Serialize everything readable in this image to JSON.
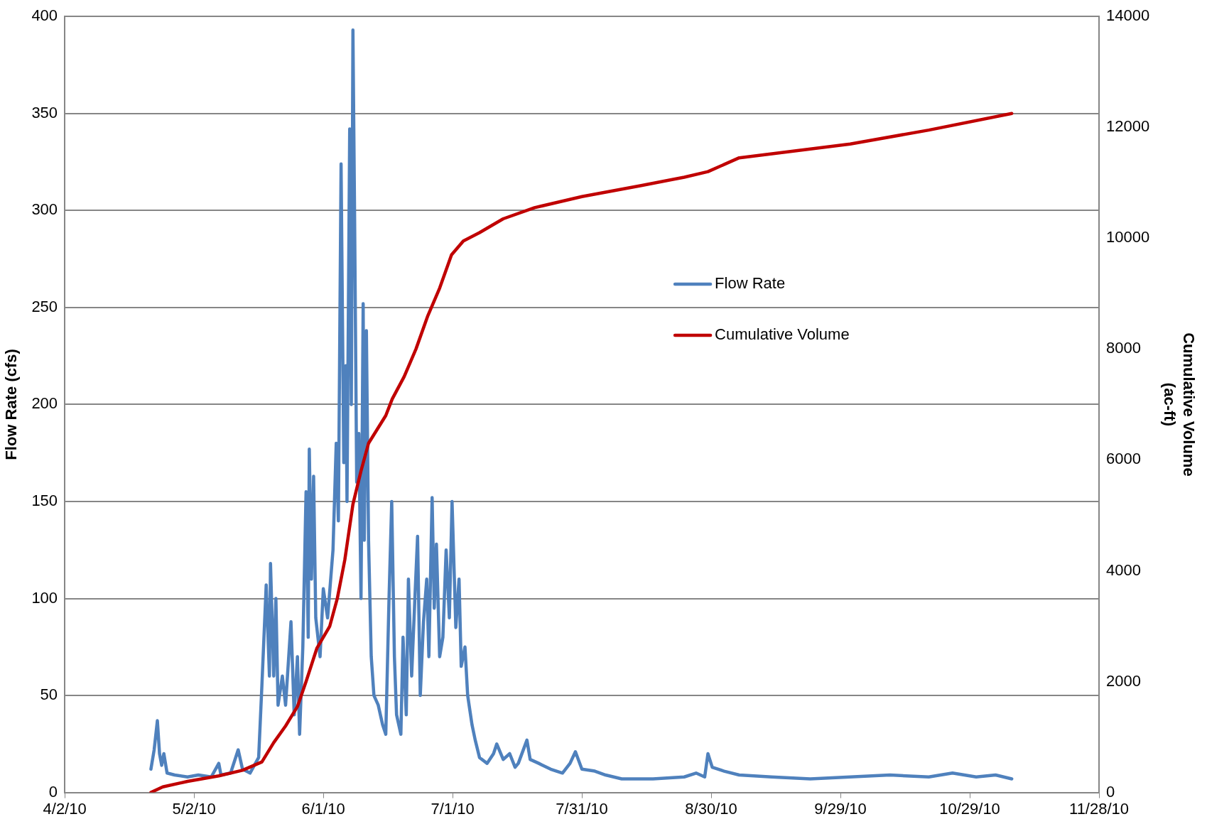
{
  "chart_data": {
    "type": "line",
    "xlabel": null,
    "ylabel": "Flow Rate (cfs)",
    "y2label": "Cumulative Volume (ac-ft)",
    "legend": "right",
    "grid": "y",
    "marker": "none",
    "line_style": "solid",
    "xlim": [
      "2010-04-02",
      "2010-11-28"
    ],
    "xticks": [
      {
        "value": "2010-04-02",
        "label": "4/2/10"
      },
      {
        "value": "2010-05-02",
        "label": "5/2/10"
      },
      {
        "value": "2010-06-01",
        "label": "6/1/10"
      },
      {
        "value": "2010-07-01",
        "label": "7/1/10"
      },
      {
        "value": "2010-07-31",
        "label": "7/31/10"
      },
      {
        "value": "2010-08-30",
        "label": "8/30/10"
      },
      {
        "value": "2010-09-29",
        "label": "9/29/10"
      },
      {
        "value": "2010-10-29",
        "label": "10/29/10"
      },
      {
        "value": "2010-11-28",
        "label": "11/28/10"
      }
    ],
    "ylim": [
      0,
      400
    ],
    "yticks": [
      0,
      50,
      100,
      150,
      200,
      250,
      300,
      350,
      400
    ],
    "y2lim": [
      0,
      14000
    ],
    "y2ticks": [
      0,
      2000,
      4000,
      6000,
      8000,
      10000,
      12000,
      14000
    ],
    "series": [
      {
        "name": "Flow Rate",
        "color": "#4f81bd",
        "x": [
          "2010-04-22",
          "2010-04-22T18:00",
          "2010-04-23T12:00",
          "2010-04-24",
          "2010-04-24T12:00",
          "2010-04-25",
          "2010-04-25T18:00",
          "2010-04-27T12:00",
          "2010-04-30T12:00",
          "2010-05-03",
          "2010-05-06",
          "2010-05-07T18:00",
          "2010-05-08T06:00",
          "2010-05-10T12:00",
          "2010-05-12T06:00",
          "2010-05-13T06:00",
          "2010-05-15",
          "2010-05-17",
          "2010-05-17T18:00",
          "2010-05-18T18:00",
          "2010-05-19T12:00",
          "2010-05-19T18:00",
          "2010-05-20T12:00",
          "2010-05-21",
          "2010-05-21T12:00",
          "2010-05-22T12:00",
          "2010-05-23T06:00",
          "2010-05-24T12:00",
          "2010-05-25T06:00",
          "2010-05-26",
          "2010-05-26T12:00",
          "2010-05-27T06:00",
          "2010-05-28",
          "2010-05-28T12:00",
          "2010-05-28T18:00",
          "2010-05-29T06:00",
          "2010-05-29T18:00",
          "2010-05-30T06:00",
          "2010-05-31T06:00",
          "2010-06-01",
          "2010-06-02",
          "2010-06-03T06:00",
          "2010-06-04",
          "2010-06-04T12:00",
          "2010-06-05T03:00",
          "2010-06-05T18:00",
          "2010-06-06T06:00",
          "2010-06-06T12:00",
          "2010-06-07T03:00",
          "2010-06-07T12:00",
          "2010-06-07T21:00",
          "2010-06-08T06:00",
          "2010-06-08T18:00",
          "2010-06-09T06:00",
          "2010-06-09T18:00",
          "2010-06-10T06:00",
          "2010-06-10T12:00",
          "2010-06-11",
          "2010-06-11T12:00",
          "2010-06-12T03:00",
          "2010-06-12T18:00",
          "2010-06-13T18:00",
          "2010-06-14T18:00",
          "2010-06-15T12:00",
          "2010-06-16T06:00",
          "2010-06-16T21:00",
          "2010-06-17T12:00",
          "2010-06-18",
          "2010-06-19",
          "2010-06-19T12:00",
          "2010-06-20T06:00",
          "2010-06-20T18:00",
          "2010-06-21T12:00",
          "2010-06-22T06:00",
          "2010-06-22T21:00",
          "2010-06-23T12:00",
          "2010-06-24T06:00",
          "2010-06-25",
          "2010-06-25T12:00",
          "2010-06-26T06:00",
          "2010-06-26T18:00",
          "2010-06-27T06:00",
          "2010-06-28",
          "2010-06-28T18:00",
          "2010-06-29T12:00",
          "2010-06-30T06:00",
          "2010-06-30T21:00",
          "2010-07-01T18:00",
          "2010-07-02T12:00",
          "2010-07-03",
          "2010-07-03T21:00",
          "2010-07-04T12:00",
          "2010-07-05T12:00",
          "2010-07-06T06:00",
          "2010-07-07T06:00",
          "2010-07-09",
          "2010-07-10T12:00",
          "2010-07-11T06:00",
          "2010-07-12T18:00",
          "2010-07-14T06:00",
          "2010-07-15T12:00",
          "2010-07-16T06:00",
          "2010-07-18T06:00",
          "2010-07-19",
          "2010-07-21",
          "2010-07-23T18:00",
          "2010-07-26T12:00",
          "2010-07-28T06:00",
          "2010-07-29T12:00",
          "2010-07-31",
          "2010-08-03",
          "2010-08-05T12:00",
          "2010-08-09T06:00",
          "2010-08-16T12:00",
          "2010-08-23T18:00",
          "2010-08-26T12:00",
          "2010-08-28T12:00",
          "2010-08-29T06:00",
          "2010-08-30T06:00",
          "2010-09-02",
          "2010-09-05T12:00",
          "2010-09-13",
          "2010-09-22",
          "2010-10-01T06:00",
          "2010-10-10T12:00",
          "2010-10-19T12:00",
          "2010-10-25",
          "2010-10-30T12:00",
          "2010-11-04",
          "2010-11-07T18:00"
        ],
        "values": [
          12,
          22,
          37,
          20,
          14,
          20,
          10,
          9,
          8,
          9,
          8,
          15,
          9,
          10,
          22,
          12,
          10,
          18,
          55,
          107,
          60,
          118,
          60,
          100,
          45,
          60,
          45,
          88,
          40,
          70,
          30,
          75,
          155,
          80,
          177,
          110,
          163,
          90,
          70,
          105,
          90,
          125,
          180,
          140,
          324,
          170,
          220,
          150,
          342,
          200,
          393,
          300,
          160,
          185,
          100,
          252,
          130,
          238,
          130,
          70,
          50,
          45,
          35,
          30,
          100,
          150,
          70,
          40,
          30,
          80,
          40,
          110,
          60,
          100,
          132,
          50,
          88,
          110,
          70,
          152,
          95,
          128,
          70,
          80,
          125,
          90,
          150,
          85,
          110,
          65,
          75,
          50,
          35,
          27,
          18,
          15,
          20,
          25,
          17,
          20,
          13,
          15,
          27,
          17,
          15,
          12,
          10,
          15,
          21,
          12,
          11,
          9,
          7,
          7,
          8,
          10,
          8,
          20,
          13,
          11,
          9,
          8,
          7,
          8,
          9,
          8,
          10,
          8,
          9,
          7
        ]
      },
      {
        "name": "Cumulative Volume",
        "color": "#c00000",
        "axis": "y2",
        "x": [
          "2010-04-22",
          "2010-04-24T18:00",
          "2010-04-30T12:00",
          "2010-05-07T18:00",
          "2010-05-13T06:00",
          "2010-05-17T18:00",
          "2010-05-20T12:00",
          "2010-05-23T06:00",
          "2010-05-26",
          "2010-05-28",
          "2010-05-30T12:00",
          "2010-06-02T12:00",
          "2010-06-04T06:00",
          "2010-06-06",
          "2010-06-07T21:00",
          "2010-06-09T18:00",
          "2010-06-11T12:00",
          "2010-06-13T12:00",
          "2010-06-15T12:00",
          "2010-06-17",
          "2010-06-19T18:00",
          "2010-06-22T12:00",
          "2010-06-25T06:00",
          "2010-06-28",
          "2010-06-30T18:00",
          "2010-07-03T12:00",
          "2010-07-07T06:00",
          "2010-07-12T18:00",
          "2010-07-20",
          "2010-07-31",
          "2010-08-13T18:00",
          "2010-08-23T18:00",
          "2010-08-29T06:00",
          "2010-09-05T12:00",
          "2010-10-01T06:00",
          "2010-10-19T12:00",
          "2010-11-07T18:00"
        ],
        "values": [
          0,
          100,
          200,
          300,
          400,
          550,
          900,
          1200,
          1550,
          2000,
          2600,
          3000,
          3500,
          4200,
          5200,
          5800,
          6300,
          6550,
          6800,
          7100,
          7500,
          8000,
          8600,
          9100,
          9700,
          9950,
          10100,
          10350,
          10550,
          10750,
          10950,
          11100,
          11200,
          11450,
          11700,
          11950,
          12250
        ]
      }
    ]
  }
}
